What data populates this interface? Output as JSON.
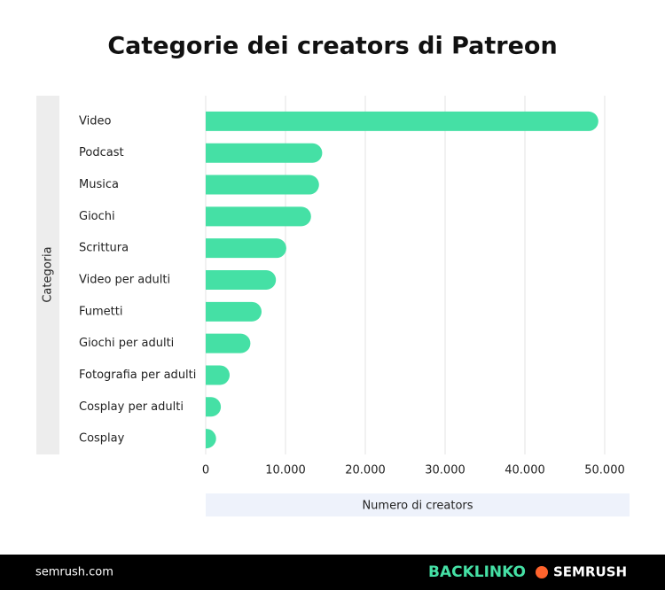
{
  "chart_data": {
    "type": "bar",
    "orientation": "horizontal",
    "title": "Categorie dei creators di Patreon",
    "y_label": "Categoria",
    "x_label": "Numero di creators",
    "categories": [
      "Video",
      "Podcast",
      "Musica",
      "Giochi",
      "Scrittura",
      "Video per adulti",
      "Fumetti",
      "Giochi per adulti",
      "Fotografia per adulti",
      "Cosplay per adulti",
      "Cosplay"
    ],
    "values": [
      49200,
      14600,
      14200,
      13200,
      10100,
      8800,
      7000,
      5600,
      3000,
      1900,
      1300
    ],
    "color": "#45e0a5",
    "xlim": [
      0,
      50000
    ],
    "xticks": [
      0,
      {
        "value": 10000,
        "label": "10.000"
      },
      {
        "value": 20000,
        "label": "20.000"
      },
      {
        "value": 30000,
        "label": "30.000"
      },
      {
        "value": 40000,
        "label": "40.000"
      },
      {
        "value": 50000,
        "label": "50.000"
      }
    ],
    "grid": true
  },
  "footer": {
    "site": "semrush.com",
    "brand1": "BACKLINKO",
    "brand2": "SEMRUSH"
  }
}
